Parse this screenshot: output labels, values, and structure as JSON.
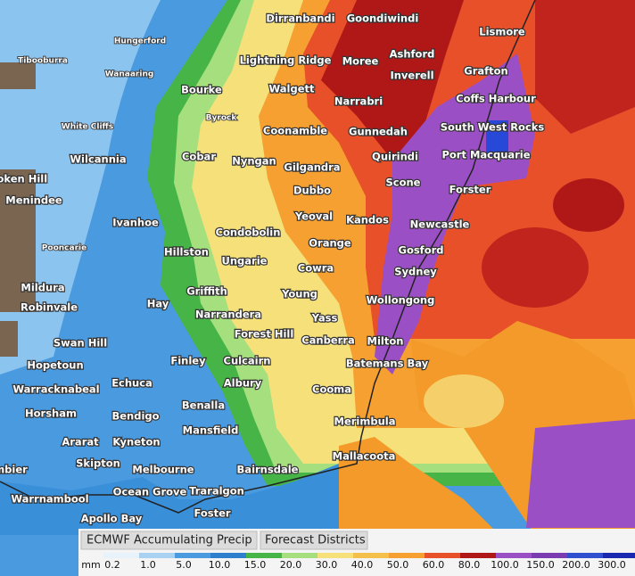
{
  "places": [
    "Dirranbandi",
    "Goondiwindi",
    "Lismore",
    "Hungerford",
    "Ashford",
    "Tibooburra",
    "Lightning Ridge",
    "Moree",
    "Inverell",
    "Grafton",
    "Wanaaring",
    "Bourke",
    "Walgett",
    "Narrabri",
    "Coffs Harbour",
    "Byrock",
    "White Cliffs",
    "Coonamble",
    "Gunnedah",
    "South West Rocks",
    "Wilcannia",
    "Cobar",
    "Nyngan",
    "Gilgandra",
    "Quirindi",
    "Port Macquarie",
    "roken Hill",
    "Dubbo",
    "Scone",
    "Forster",
    "Menindee",
    "Yeoval",
    "Kandos",
    "Ivanhoe",
    "Condobolin",
    "Newcastle",
    "Orange",
    "Gosford",
    "Pooncarie",
    "Hillston",
    "Ungarie",
    "Cowra",
    "Sydney",
    "Mildura",
    "Griffith",
    "Young",
    "Wollongong",
    "Hay",
    "Robinvale",
    "Narrandera",
    "Yass",
    "Forest Hill",
    "Canberra",
    "Milton",
    "Swan Hill",
    "Finley",
    "Culcairn",
    "Batemans Bay",
    "Hopetoun",
    "Echuca",
    "Albury",
    "Cooma",
    "Warracknabeal",
    "Benalla",
    "Horsham",
    "Bendigo",
    "Merimbula",
    "Mansfield",
    "Ararat",
    "Kyneton",
    "Mallacoota",
    "Skipton",
    "Melbourne",
    "Bairnsdale",
    "Ocean Grove",
    "Traralgon",
    "Warrnambool",
    "Apollo Bay",
    "Foster",
    "mbier"
  ],
  "legend": {
    "tabs": [
      "ECMWF Accumulating Precip",
      "Forecast Districts"
    ],
    "unit": "mm",
    "labels": [
      "0.2",
      "1.0",
      "5.0",
      "10.0",
      "15.0",
      "20.0",
      "30.0",
      "40.0",
      "50.0",
      "60.0",
      "80.0",
      "100.0",
      "150.0",
      "200.0",
      "300.0"
    ]
  }
}
